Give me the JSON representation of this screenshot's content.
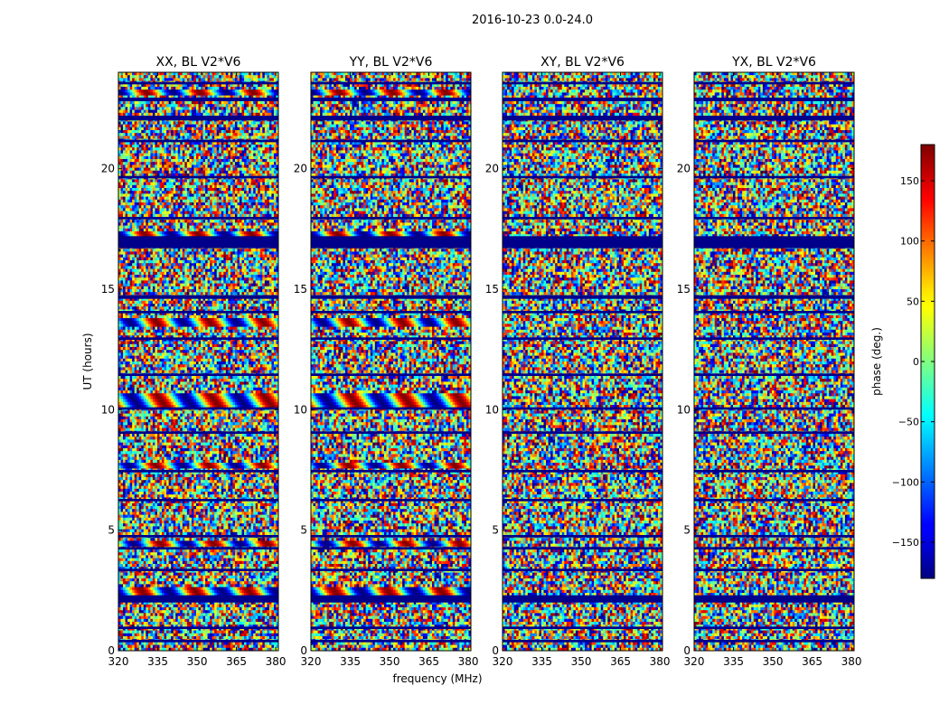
{
  "figure_title": "2016-10-23 0.0-24.0",
  "colors": {
    "background": "#ffffff",
    "flag_band": "#00008b",
    "axis": "#000000"
  },
  "chart_data": {
    "type": "heatmap",
    "suptitle": "2016-10-23 0.0-24.0",
    "colormap": "jet",
    "shared_xlabel": "frequency (MHz)",
    "ylabel": "UT (hours)",
    "xlim": [
      320,
      381
    ],
    "ylim": [
      0,
      24
    ],
    "xticks": [
      320,
      335,
      350,
      365,
      380
    ],
    "yticks": [
      0,
      5,
      10,
      15,
      20
    ],
    "panels": [
      {
        "title": "XX, BL V2*V6",
        "fringe_bands": [
          [
            2.3,
            2.65
          ],
          [
            4.35,
            4.6
          ],
          [
            7.6,
            7.85
          ],
          [
            10.1,
            10.7
          ],
          [
            13.5,
            13.8
          ],
          [
            17.2,
            17.4
          ],
          [
            23.0,
            23.25
          ]
        ]
      },
      {
        "title": "YY, BL V2*V6",
        "fringe_bands": [
          [
            2.3,
            2.65
          ],
          [
            4.35,
            4.6
          ],
          [
            7.6,
            7.85
          ],
          [
            10.1,
            10.7
          ],
          [
            13.5,
            13.8
          ],
          [
            17.2,
            17.4
          ],
          [
            23.0,
            23.25
          ]
        ]
      },
      {
        "title": "XY, BL V2*V6",
        "fringe_bands": []
      },
      {
        "title": "YX, BL V2*V6",
        "fringe_bands": []
      }
    ],
    "flagged_bands": [
      [
        0.35,
        0.45
      ],
      [
        0.9,
        1.0
      ],
      [
        2.0,
        2.3
      ],
      [
        3.3,
        3.4
      ],
      [
        4.2,
        4.3
      ],
      [
        4.7,
        4.8
      ],
      [
        6.2,
        6.3
      ],
      [
        7.4,
        7.5
      ],
      [
        9.0,
        9.1
      ],
      [
        10.0,
        10.1
      ],
      [
        11.4,
        11.5
      ],
      [
        12.9,
        13.0
      ],
      [
        14.0,
        14.1
      ],
      [
        14.6,
        14.75
      ],
      [
        16.7,
        17.2
      ],
      [
        17.9,
        18.0
      ],
      [
        19.6,
        19.7
      ],
      [
        21.1,
        21.2
      ],
      [
        22.0,
        22.2
      ],
      [
        22.8,
        22.95
      ],
      [
        23.5,
        23.6
      ]
    ],
    "colorbar": {
      "label": "phase (deg.)",
      "range": [
        -180,
        180
      ],
      "ticks": [
        -150,
        -100,
        -50,
        0,
        50,
        100,
        150
      ],
      "tick_labels": [
        "−150",
        "−100",
        "−50",
        "0",
        "50",
        "100",
        "150"
      ]
    }
  }
}
